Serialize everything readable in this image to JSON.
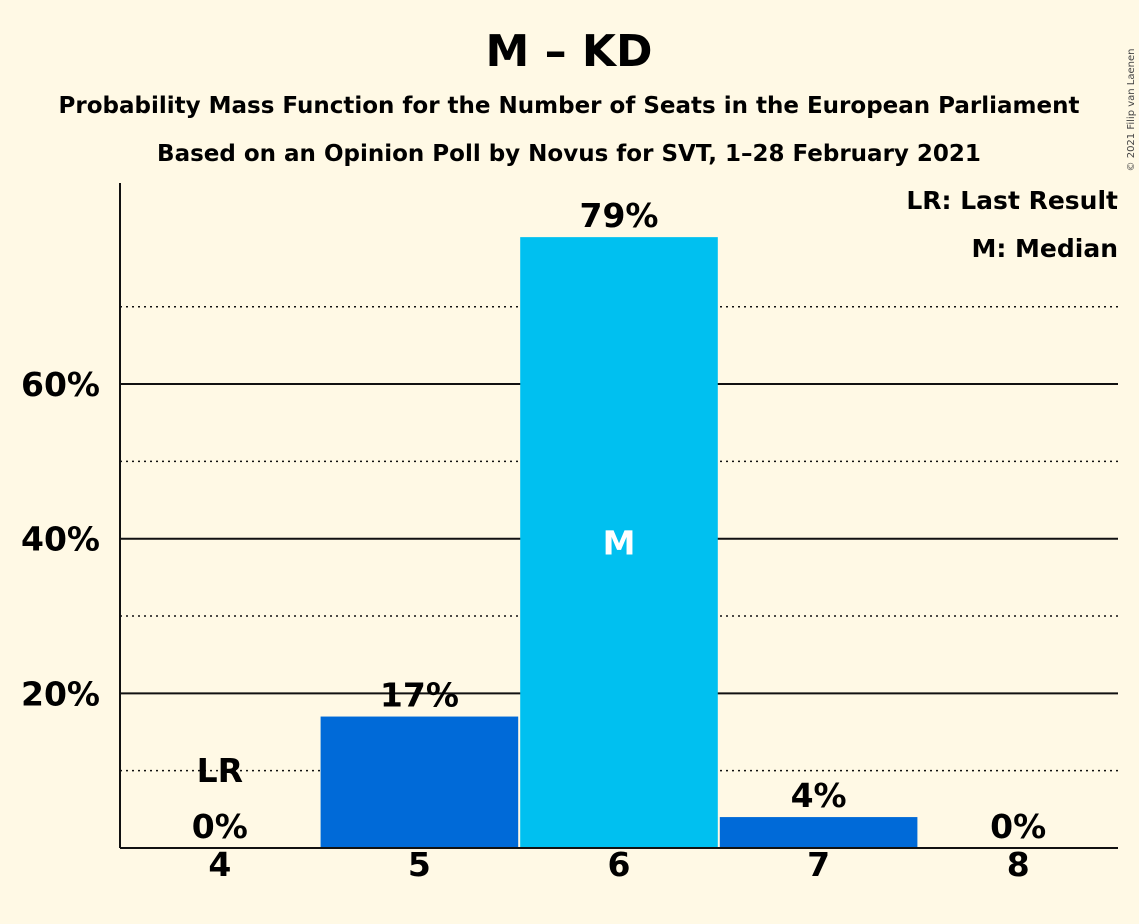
{
  "chart_data": {
    "type": "bar",
    "title": "M – KD",
    "subtitle_1": "Probability Mass Function for the Number of Seats in the European Parliament",
    "subtitle_2": "Based on an Opinion Poll by Novus for SVT, 1–28 February 2021",
    "copyright": "© 2021 Filip van Laenen",
    "legend": {
      "placement": "top-right",
      "entries": [
        "LR: Last Result",
        "M: Median"
      ]
    },
    "categories": [
      "4",
      "5",
      "6",
      "7",
      "8"
    ],
    "values": [
      0,
      17,
      79,
      4,
      0
    ],
    "value_labels": [
      "0%",
      "17%",
      "79%",
      "4%",
      "0%"
    ],
    "bar_colors": [
      "#006ad8",
      "#006ad8",
      "#00c0f0",
      "#006ad8",
      "#006ad8"
    ],
    "last_result_category": "4",
    "last_result_label": "LR",
    "median_category": "6",
    "median_label": "M",
    "ylim": [
      0,
      86
    ],
    "yticks": [
      20,
      40,
      60
    ],
    "ytick_labels": [
      "20%",
      "40%",
      "60%"
    ],
    "minor_gridlines": [
      10,
      30,
      50,
      70
    ],
    "grid": true
  }
}
